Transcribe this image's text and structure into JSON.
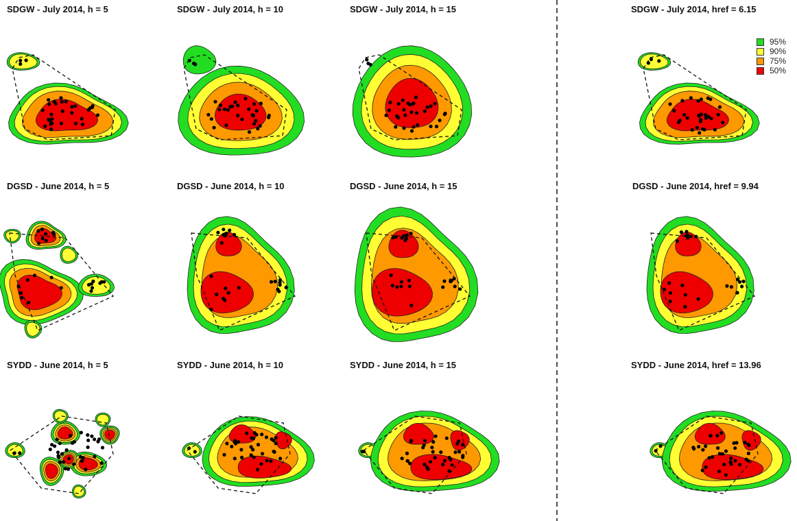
{
  "panels": [
    {
      "id": "sdgw-h5",
      "title": "SDGW - July 2014, h = 5"
    },
    {
      "id": "sdgw-h10",
      "title": "SDGW - July 2014, h = 10"
    },
    {
      "id": "sdgw-h15",
      "title": "SDGW - July 2014, h = 15"
    },
    {
      "id": "sdgw-href",
      "title": "SDGW - July 2014, href = 6.15"
    },
    {
      "id": "dgsd-h5",
      "title": "DGSD - June 2014, h = 5"
    },
    {
      "id": "dgsd-h10",
      "title": "DGSD - June 2014, h = 10"
    },
    {
      "id": "dgsd-h15",
      "title": "DGSD - June 2014, h = 15"
    },
    {
      "id": "dgsd-href",
      "title": "DGSD - June 2014, href = 9.94"
    },
    {
      "id": "sydd-h5",
      "title": "SYDD - June 2014, h = 5"
    },
    {
      "id": "sydd-h10",
      "title": "SYDD - June 2014, h = 10"
    },
    {
      "id": "sydd-h15",
      "title": "SYDD - June 2014, h = 15"
    },
    {
      "id": "sydd-href",
      "title": "SYDD - June 2014, href = 13.96"
    }
  ],
  "legend": [
    {
      "label": "95%",
      "color": "#22dd22"
    },
    {
      "label": "90%",
      "color": "#ffff33"
    },
    {
      "label": "75%",
      "color": "#ff9900"
    },
    {
      "label": "50%",
      "color": "#ee0000"
    }
  ]
}
